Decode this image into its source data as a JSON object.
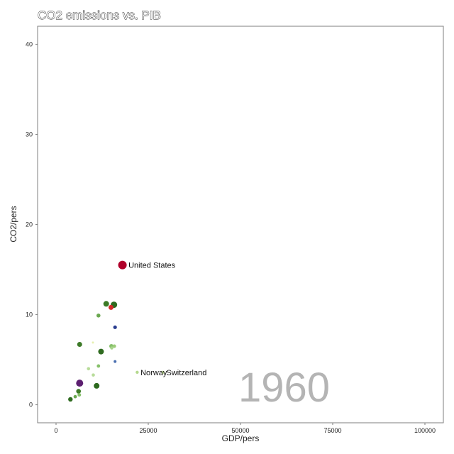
{
  "chart_data": {
    "type": "scatter",
    "title": "CO2 emissions vs. PIB",
    "xlabel": "GDP/pers",
    "ylabel": "CO2/pers",
    "xlim": [
      -5000,
      105000
    ],
    "ylim": [
      -2,
      42
    ],
    "x_ticks": [
      {
        "value": 0,
        "label": "0"
      },
      {
        "value": 25000,
        "label": "25000"
      },
      {
        "value": 50000,
        "label": "50000"
      },
      {
        "value": 75000,
        "label": "75000"
      },
      {
        "value": 100000,
        "label": "100000"
      }
    ],
    "y_ticks": [
      {
        "value": 0,
        "label": "0"
      },
      {
        "value": 10,
        "label": "10"
      },
      {
        "value": 20,
        "label": "20"
      },
      {
        "value": 30,
        "label": "30"
      },
      {
        "value": 40,
        "label": "40"
      }
    ],
    "grid": false,
    "year_label": "1960",
    "points": [
      {
        "x": 18000,
        "y": 15.5,
        "size": 6,
        "color": "#b0002a",
        "label": "United States"
      },
      {
        "x": 22000,
        "y": 3.6,
        "size": 2.2,
        "color": "#b5d98e",
        "label": "Norway"
      },
      {
        "x": 29000,
        "y": 3.6,
        "size": 2.2,
        "color": "#c4e09b",
        "label": "Switzerland"
      },
      {
        "x": 15700,
        "y": 11.1,
        "size": 4.5,
        "color": "#2d6a1f",
        "label": ""
      },
      {
        "x": 13600,
        "y": 11.2,
        "size": 4,
        "color": "#3c7a26",
        "label": ""
      },
      {
        "x": 14900,
        "y": 10.8,
        "size": 3.5,
        "color": "#d42a2a",
        "label": ""
      },
      {
        "x": 11500,
        "y": 9.9,
        "size": 2.8,
        "color": "#6aa84f",
        "label": ""
      },
      {
        "x": 16000,
        "y": 8.6,
        "size": 2.6,
        "color": "#2a3d8f",
        "label": ""
      },
      {
        "x": 6400,
        "y": 6.7,
        "size": 3.5,
        "color": "#3d7a28",
        "label": ""
      },
      {
        "x": 12200,
        "y": 5.9,
        "size": 4,
        "color": "#2f6b20",
        "label": ""
      },
      {
        "x": 15000,
        "y": 6.5,
        "size": 3,
        "color": "#86c06a",
        "label": ""
      },
      {
        "x": 15800,
        "y": 6.5,
        "size": 2.5,
        "color": "#9ccc7a",
        "label": ""
      },
      {
        "x": 15100,
        "y": 6.3,
        "size": 2.2,
        "color": "#a8d48c",
        "label": ""
      },
      {
        "x": 10000,
        "y": 6.9,
        "size": 1.5,
        "color": "#e6f0b0",
        "label": ""
      },
      {
        "x": 16000,
        "y": 4.8,
        "size": 2,
        "color": "#4a6fb0",
        "label": ""
      },
      {
        "x": 11500,
        "y": 4.3,
        "size": 2.4,
        "color": "#86c06a",
        "label": ""
      },
      {
        "x": 8800,
        "y": 4.0,
        "size": 2.3,
        "color": "#b8dc9a",
        "label": ""
      },
      {
        "x": 10100,
        "y": 3.3,
        "size": 2.3,
        "color": "#b8dc9a",
        "label": ""
      },
      {
        "x": 6400,
        "y": 2.4,
        "size": 5,
        "color": "#5c1f70",
        "label": ""
      },
      {
        "x": 11000,
        "y": 2.1,
        "size": 4,
        "color": "#2d6a1f",
        "label": ""
      },
      {
        "x": 6100,
        "y": 1.5,
        "size": 3.3,
        "color": "#3c7a26",
        "label": ""
      },
      {
        "x": 6300,
        "y": 1.1,
        "size": 2.5,
        "color": "#86c06a",
        "label": ""
      },
      {
        "x": 5200,
        "y": 0.9,
        "size": 2.4,
        "color": "#6aa84f",
        "label": ""
      },
      {
        "x": 3900,
        "y": 0.6,
        "size": 3.2,
        "color": "#2f6b20",
        "label": ""
      }
    ]
  }
}
